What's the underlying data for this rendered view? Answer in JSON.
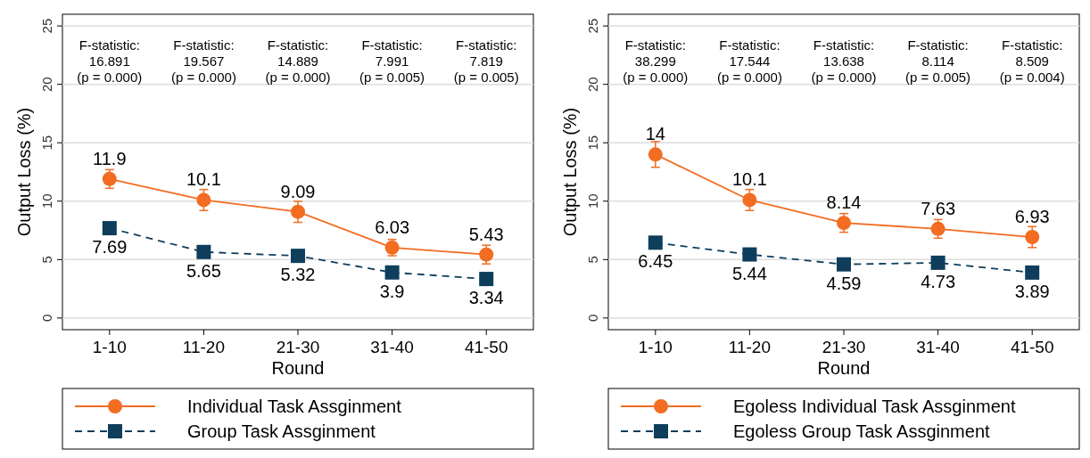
{
  "chart_data": [
    {
      "type": "line",
      "xlabel": "Round",
      "ylabel": "Output Loss (%)",
      "categories": [
        "1-10",
        "11-20",
        "21-30",
        "31-40",
        "41-50"
      ],
      "ylim": [
        -1,
        26
      ],
      "yticks": [
        0,
        5,
        10,
        15,
        20,
        25
      ],
      "grid": "y",
      "legend": "bottom",
      "data_labels": true,
      "annotations": [
        "F-statistic:\n16.891\n(p = 0.000)",
        "F-statistic:\n19.567\n(p = 0.000)",
        "F-statistic:\n14.889\n(p = 0.000)",
        "F-statistic:\n7.991\n(p = 0.005)",
        "F-statistic:\n7.819\n(p = 0.005)"
      ],
      "series": [
        {
          "name": "Individual Task Assginment",
          "color": "#f26c21",
          "values": [
            11.9,
            10.1,
            9.09,
            6.03,
            5.43
          ],
          "errors": [
            0.8,
            0.9,
            0.9,
            0.7,
            0.8
          ],
          "marker": "circle",
          "line_style": "solid"
        },
        {
          "name": "Group Task Assginment",
          "color": "#0e3e5c",
          "values": [
            7.69,
            5.65,
            5.32,
            3.9,
            3.34
          ],
          "marker": "square",
          "line_style": "dashed"
        }
      ]
    },
    {
      "type": "line",
      "xlabel": "Round",
      "ylabel": "Output Loss (%)",
      "categories": [
        "1-10",
        "11-20",
        "21-30",
        "31-40",
        "41-50"
      ],
      "ylim": [
        -1,
        26
      ],
      "yticks": [
        0,
        5,
        10,
        15,
        20,
        25
      ],
      "grid": "y",
      "legend": "bottom",
      "data_labels": true,
      "annotations": [
        "F-statistic:\n38.299\n(p = 0.000)",
        "F-statistic:\n17.544\n(p = 0.000)",
        "F-statistic:\n13.638\n(p = 0.000)",
        "F-statistic:\n8.114\n(p = 0.005)",
        "F-statistic:\n8.509\n(p = 0.004)"
      ],
      "series": [
        {
          "name": "Egoless Individual Task Assginment",
          "color": "#f26c21",
          "values": [
            14,
            10.1,
            8.14,
            7.63,
            6.93
          ],
          "errors": [
            1.1,
            0.9,
            0.8,
            0.8,
            0.9
          ],
          "marker": "circle",
          "line_style": "solid"
        },
        {
          "name": "Egoless Group Task Assginment",
          "color": "#0e3e5c",
          "values": [
            6.45,
            5.44,
            4.59,
            4.73,
            3.89
          ],
          "marker": "square",
          "line_style": "dashed"
        }
      ]
    }
  ]
}
